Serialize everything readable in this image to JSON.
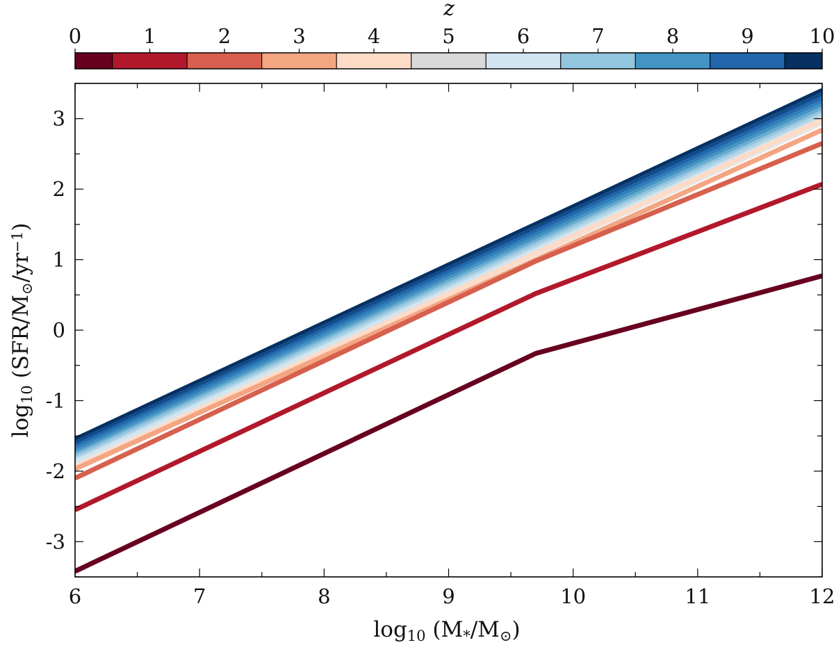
{
  "chart_data": {
    "type": "line",
    "title": "",
    "xlabel": {
      "prefix": "log",
      "sub": "10",
      "text": " (M",
      "sub2": "*",
      "mid": "/M",
      "sub3": "⊙",
      "end": ")"
    },
    "ylabel": {
      "prefix": "log",
      "sub": "10",
      "text": " (SFR/M",
      "sub2": "⊙",
      "mid": "/yr",
      "sup": "−1",
      "end": ")"
    },
    "xlim": [
      6,
      12
    ],
    "ylim": [
      -3.5,
      3.5
    ],
    "x_ticks": [
      6,
      7,
      8,
      9,
      10,
      11,
      12
    ],
    "y_ticks": [
      -3,
      -2,
      -1,
      0,
      1,
      2,
      3
    ],
    "x_tick_labels": [
      "6",
      "7",
      "8",
      "9",
      "10",
      "11",
      "12"
    ],
    "y_tick_labels": [
      "-3",
      "-2",
      "-1",
      "0",
      "1",
      "2",
      "3"
    ],
    "colorbar": {
      "label": "z",
      "range": [
        0,
        10
      ],
      "ticks": [
        0,
        1,
        2,
        3,
        4,
        5,
        6,
        7,
        8,
        9,
        10
      ],
      "tick_labels": [
        "0",
        "1",
        "2",
        "3",
        "4",
        "5",
        "6",
        "7",
        "8",
        "9",
        "10"
      ],
      "segments": [
        {
          "from": 0,
          "to": 0.5,
          "color": "#67001f"
        },
        {
          "from": 0.5,
          "to": 1.5,
          "color": "#b2182b"
        },
        {
          "from": 1.5,
          "to": 2.5,
          "color": "#d6604d"
        },
        {
          "from": 2.5,
          "to": 3.5,
          "color": "#f4a582"
        },
        {
          "from": 3.5,
          "to": 4.5,
          "color": "#fddbc7"
        },
        {
          "from": 4.5,
          "to": 5.5,
          "color": "#d9d9d9"
        },
        {
          "from": 5.5,
          "to": 6.5,
          "color": "#d1e5f0"
        },
        {
          "from": 6.5,
          "to": 7.5,
          "color": "#92c5de"
        },
        {
          "from": 7.5,
          "to": 8.5,
          "color": "#4393c3"
        },
        {
          "from": 8.5,
          "to": 9.5,
          "color": "#2166ac"
        },
        {
          "from": 9.5,
          "to": 10,
          "color": "#053061"
        }
      ]
    },
    "series": [
      {
        "name": "z=10",
        "color": "#053061",
        "x": [
          6,
          12
        ],
        "y": [
          -1.55,
          3.4
        ]
      },
      {
        "name": "z=9.5",
        "color": "#134b87",
        "x": [
          6,
          12
        ],
        "y": [
          -1.6,
          3.35
        ]
      },
      {
        "name": "z=9",
        "color": "#2166ac",
        "x": [
          6,
          12
        ],
        "y": [
          -1.65,
          3.29
        ]
      },
      {
        "name": "z=8.5",
        "color": "#327cb7",
        "x": [
          6,
          12
        ],
        "y": [
          -1.69,
          3.24
        ]
      },
      {
        "name": "z=8",
        "color": "#4393c3",
        "x": [
          6,
          12
        ],
        "y": [
          -1.73,
          3.19
        ]
      },
      {
        "name": "z=7.5",
        "color": "#6aacd0",
        "x": [
          6,
          12
        ],
        "y": [
          -1.77,
          3.14
        ]
      },
      {
        "name": "z=7",
        "color": "#92c5de",
        "x": [
          6,
          12
        ],
        "y": [
          -1.8,
          3.09
        ]
      },
      {
        "name": "z=6.5",
        "color": "#b2d5e7",
        "x": [
          6,
          12
        ],
        "y": [
          -1.84,
          3.05
        ]
      },
      {
        "name": "z=6",
        "color": "#d1e5f0",
        "x": [
          6,
          12
        ],
        "y": [
          -1.87,
          3.0
        ]
      },
      {
        "name": "z=5",
        "color": "#e6e6e6",
        "x": [
          6,
          12
        ],
        "y": [
          -1.92,
          2.94
        ]
      },
      {
        "name": "z=4",
        "color": "#fddbc7",
        "x": [
          6,
          12
        ],
        "y": [
          -1.95,
          2.98
        ]
      },
      {
        "name": "z=3",
        "color": "#f4a582",
        "x": [
          6,
          12
        ],
        "y": [
          -1.97,
          2.84
        ]
      },
      {
        "name": "z=2",
        "color": "#d6604d",
        "x": [
          6,
          9.7,
          12
        ],
        "y": [
          -2.1,
          0.98,
          2.65
        ]
      },
      {
        "name": "z=1",
        "color": "#b2182b",
        "x": [
          6,
          9.7,
          12
        ],
        "y": [
          -2.55,
          0.52,
          2.07
        ]
      },
      {
        "name": "z=0",
        "color": "#67001f",
        "x": [
          6,
          9.7,
          12
        ],
        "y": [
          -3.42,
          -0.33,
          0.77
        ]
      }
    ]
  }
}
